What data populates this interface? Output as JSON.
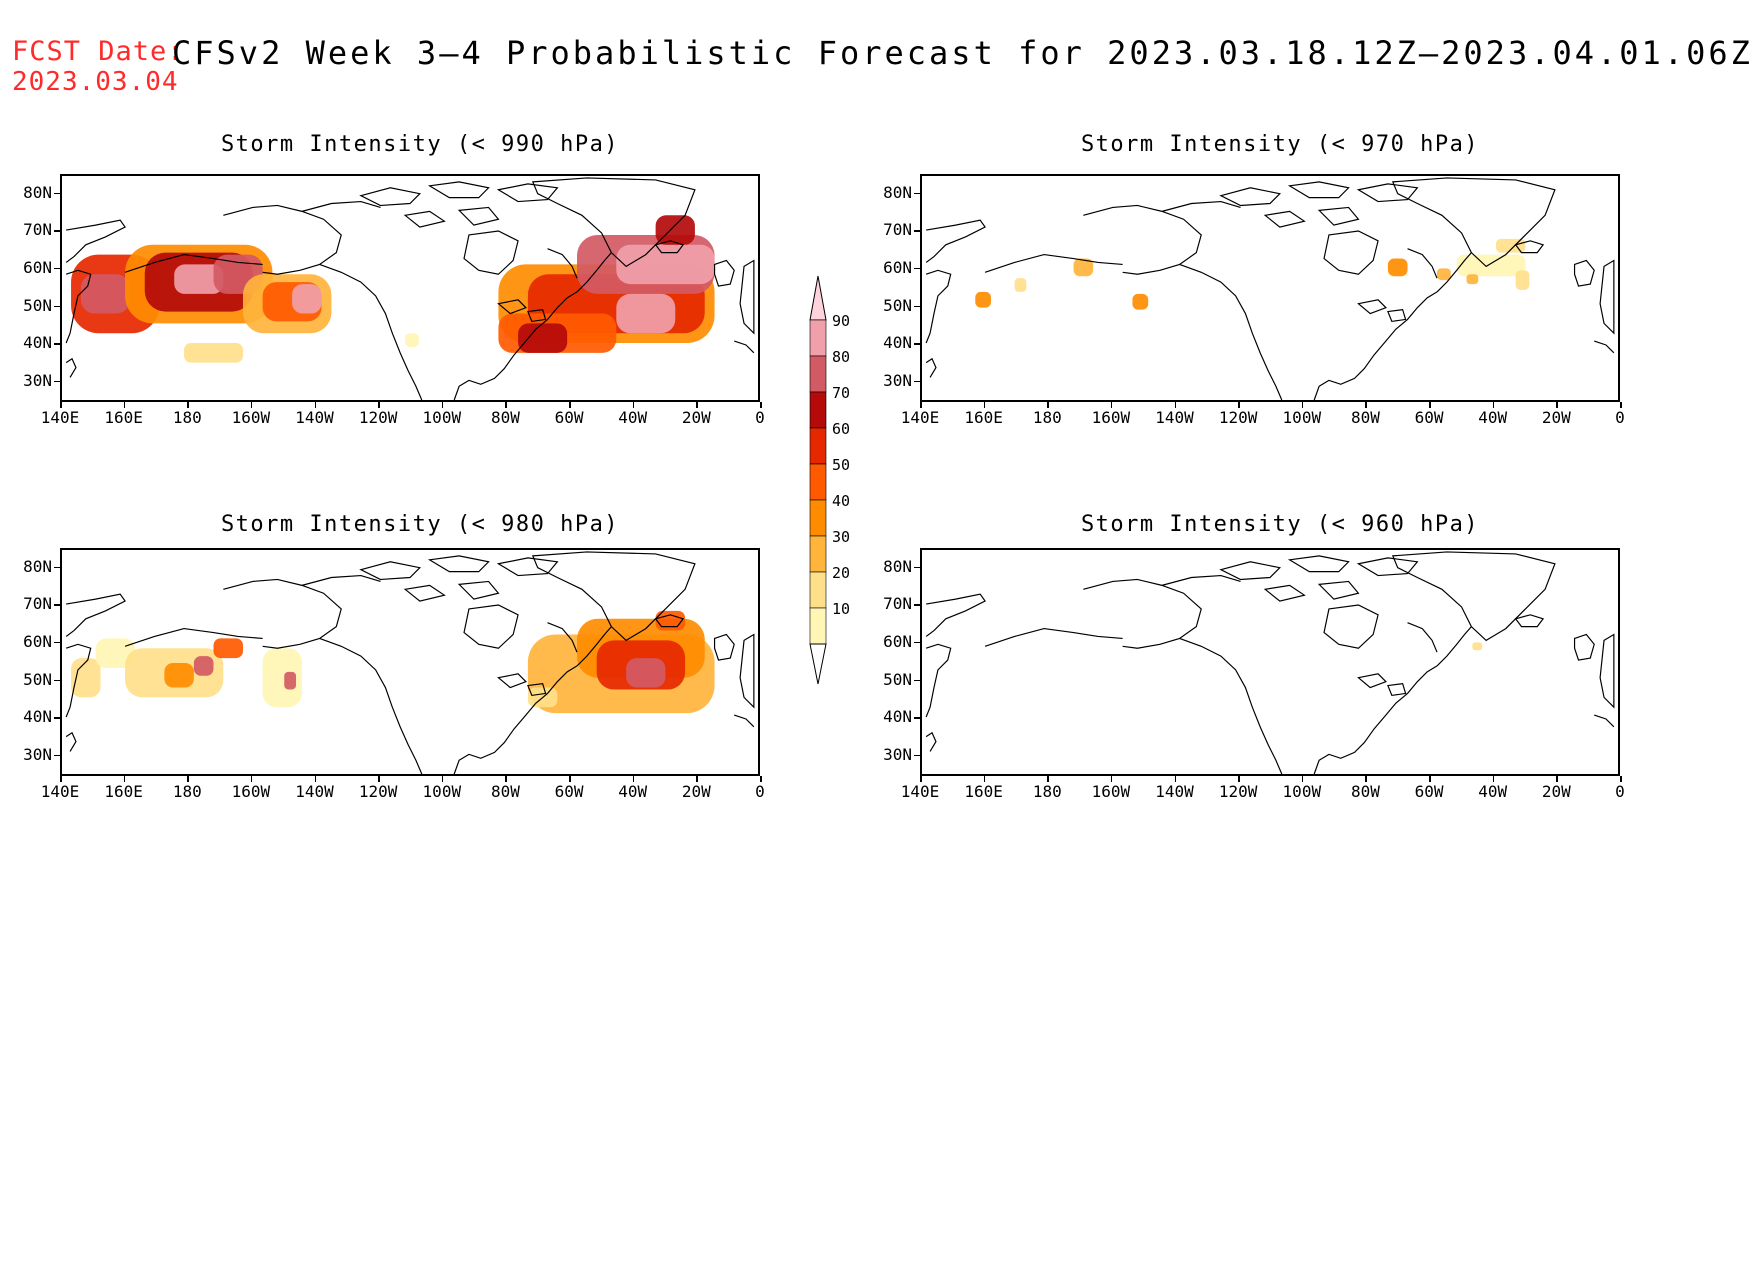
{
  "header": {
    "fcst_label": "FCST Date:",
    "fcst_date": "2023.03.04",
    "title": "CFSv2 Week 3–4 Probabilistic Forecast for 2023.03.18.12Z–2023.04.01.06Z"
  },
  "axes": {
    "lat_labels": [
      "80N",
      "70N",
      "60N",
      "50N",
      "40N",
      "30N"
    ],
    "lon_labels": [
      "140E",
      "160E",
      "180",
      "160W",
      "140W",
      "120W",
      "100W",
      "80W",
      "60W",
      "40W",
      "20W",
      "0"
    ]
  },
  "panels": [
    {
      "title": "Storm Intensity (< 990 hPa)",
      "coverage": "high"
    },
    {
      "title": "Storm Intensity (< 970 hPa)",
      "coverage": "low"
    },
    {
      "title": "Storm Intensity (< 980 hPa)",
      "coverage": "medium"
    },
    {
      "title": "Storm Intensity (< 960 hPa)",
      "coverage": "minimal"
    }
  ],
  "colorbar": {
    "levels": [
      "10",
      "20",
      "30",
      "40",
      "50",
      "60",
      "70",
      "80",
      "90"
    ],
    "colors": [
      "#fff5b4",
      "#ffe08a",
      "#ffb43c",
      "#ff8c00",
      "#ff5a00",
      "#e62800",
      "#b40a0a",
      "#d25a64",
      "#f0a0aa",
      "#ffd2dc"
    ]
  }
}
